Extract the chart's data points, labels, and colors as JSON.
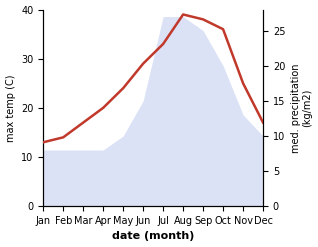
{
  "months": [
    "Jan",
    "Feb",
    "Mar",
    "Apr",
    "May",
    "Jun",
    "Jul",
    "Aug",
    "Sep",
    "Oct",
    "Nov",
    "Dec"
  ],
  "temp": [
    13,
    14,
    17,
    20,
    24,
    29,
    33,
    39,
    38,
    36,
    25,
    17
  ],
  "precip": [
    8,
    8,
    8,
    8,
    10,
    15,
    27,
    27,
    25,
    20,
    13,
    10
  ],
  "temp_color": "#c0392b",
  "precip_fill_color": "#c5cff0",
  "temp_ylim": [
    0,
    40
  ],
  "precip_ylim": [
    0,
    28
  ],
  "precip_right_ticks": [
    0,
    5,
    10,
    15,
    20,
    25
  ],
  "temp_left_ticks": [
    0,
    10,
    20,
    30,
    40
  ],
  "ylabel_left": "max temp (C)",
  "ylabel_right": "med. precipitation\n(kg/m2)",
  "xlabel": "date (month)",
  "temp_linewidth": 1.8,
  "precip_alpha": 0.6,
  "label_fontsize": 7,
  "xlabel_fontsize": 8,
  "tick_fontsize": 7
}
